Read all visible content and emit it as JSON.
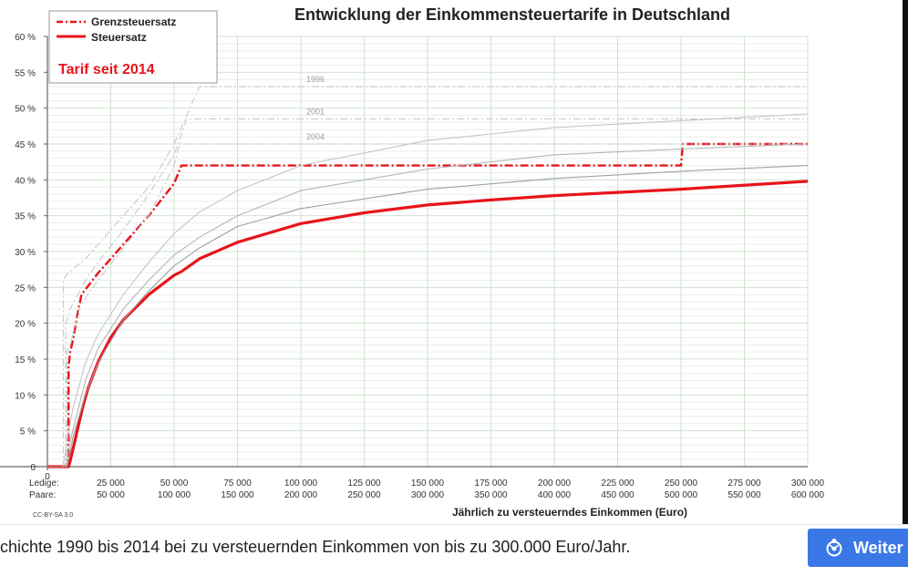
{
  "chart_data": {
    "type": "line",
    "title": "Entwicklung der Einkommensteuertarife in Deutschland",
    "xlabel": "Jährlich zu versteuerndes Einkommen (Euro)",
    "ylabel": "",
    "xlim": [
      0,
      300000
    ],
    "ylim": [
      0,
      60
    ],
    "x_ticks_ledige": [
      "25 000",
      "50 000",
      "75 000",
      "100 000",
      "125 000",
      "150 000",
      "175 000",
      "200 000",
      "225 000",
      "250 000",
      "275 000",
      "300 000"
    ],
    "x_ticks_paare": [
      "50 000",
      "100 000",
      "150 000",
      "200 000",
      "250 000",
      "300 000",
      "350 000",
      "400 000",
      "450 000",
      "500 000",
      "550 000",
      "600 000"
    ],
    "x_tick_values": [
      25000,
      50000,
      75000,
      100000,
      125000,
      150000,
      175000,
      200000,
      225000,
      250000,
      275000,
      300000
    ],
    "row_label_ledige": "Ledige:",
    "row_label_paare": "Paare:",
    "x_zero_label": "0",
    "y_ticks": [
      "0",
      "5 %",
      "10 %",
      "15 %",
      "20 %",
      "25 %",
      "30 %",
      "35 %",
      "40 %",
      "45 %",
      "50 %",
      "55 %",
      "60 %"
    ],
    "y_tick_values": [
      0,
      5,
      10,
      15,
      20,
      25,
      30,
      35,
      40,
      45,
      50,
      55,
      60
    ],
    "grid": true,
    "legend": {
      "position": "top-left",
      "entries": [
        {
          "label": "Grenzsteuersatz",
          "style": "dash-dot",
          "color": "#e8141b"
        },
        {
          "label": "Steuersatz",
          "style": "solid",
          "color": "#e8141b"
        }
      ],
      "note": "Tarif seit 2014"
    },
    "annotations": [
      "1996",
      "2001",
      "2004"
    ],
    "license": "CC-BY-SA 3.0",
    "series": [
      {
        "name": "Steuersatz",
        "role": "avg-2014",
        "color": "#e8141b",
        "x": [
          0,
          8354,
          9000,
          10000,
          12000,
          14000,
          16000,
          20000,
          25000,
          30000,
          40000,
          50000,
          52882,
          60000,
          75000,
          100000,
          125000,
          150000,
          175000,
          200000,
          250000,
          300000
        ],
        "y": [
          0,
          0,
          0.8,
          2.3,
          5.4,
          8.4,
          10.9,
          14.6,
          18.0,
          20.5,
          24.0,
          26.7,
          27.2,
          29.0,
          31.3,
          33.9,
          35.4,
          36.5,
          37.2,
          37.8,
          38.7,
          39.8
        ]
      },
      {
        "name": "Grenzsteuersatz",
        "role": "marginal-2014",
        "color": "#e8141b",
        "x": [
          0,
          8354,
          8354,
          9000,
          10000,
          11000,
          12000,
          13469,
          20000,
          30000,
          40000,
          50000,
          52882,
          60000,
          100000,
          150000,
          200000,
          250000,
          250730,
          260000,
          300000
        ],
        "y": [
          0,
          0,
          14,
          16,
          17.5,
          19.5,
          21.5,
          24,
          27,
          31,
          35,
          39.5,
          42,
          42,
          42,
          42,
          42,
          42,
          45,
          45,
          45
        ]
      },
      {
        "role": "marginal-1996",
        "color": "#c8c8c8",
        "x": [
          0,
          6300,
          6300,
          8000,
          10000,
          15000,
          20000,
          30000,
          40000,
          50000,
          60000,
          300000
        ],
        "y": [
          0,
          0,
          26,
          27,
          27.5,
          29,
          31,
          35,
          39,
          45,
          53,
          53
        ]
      },
      {
        "role": "marginal-2001",
        "color": "#c8c8c8",
        "x": [
          0,
          7200,
          7200,
          9000,
          12000,
          15000,
          20000,
          30000,
          40000,
          50000,
          55000,
          300000
        ],
        "y": [
          0,
          0,
          19.9,
          22,
          24,
          26,
          28.5,
          33,
          38,
          43.5,
          48.5,
          48.5
        ]
      },
      {
        "role": "marginal-2004",
        "color": "#c8c8c8",
        "x": [
          0,
          7700,
          7700,
          9000,
          12000,
          13000,
          20000,
          30000,
          40000,
          50000,
          52200,
          300000
        ],
        "y": [
          0,
          0,
          16,
          17,
          21,
          22.5,
          26,
          30.5,
          35,
          42,
          45,
          45
        ]
      },
      {
        "role": "avg-1996",
        "color": "#c4c4c4",
        "x": [
          0,
          6300,
          8000,
          10000,
          15000,
          20000,
          30000,
          40000,
          50000,
          60000,
          75000,
          100000,
          150000,
          200000,
          300000
        ],
        "y": [
          0,
          0,
          4,
          8,
          14.5,
          18.5,
          24,
          28.5,
          32.5,
          35.5,
          38.5,
          42,
          45.5,
          47.3,
          49.2
        ]
      },
      {
        "role": "avg-2001",
        "color": "#b4b4b4",
        "x": [
          0,
          7200,
          9000,
          10000,
          15000,
          20000,
          30000,
          40000,
          50000,
          60000,
          75000,
          100000,
          150000,
          200000,
          250000,
          300000
        ],
        "y": [
          0,
          0,
          3.5,
          5,
          12,
          16.5,
          22,
          26,
          29.5,
          32,
          35,
          38.5,
          41.5,
          43.5,
          44.3,
          45
        ]
      },
      {
        "role": "avg-2004",
        "color": "#a0a0a0",
        "x": [
          0,
          7700,
          9000,
          10000,
          15000,
          20000,
          30000,
          40000,
          50000,
          60000,
          75000,
          100000,
          150000,
          200000,
          250000,
          300000
        ],
        "y": [
          0,
          0,
          2,
          4,
          10,
          14.5,
          20.5,
          24.5,
          28,
          30.5,
          33.5,
          36,
          38.7,
          40.2,
          41.2,
          42
        ]
      }
    ]
  },
  "caption": {
    "text": "chichte 1990 bis 2014 bei zu versteuernden Einkommen von bis zu 300.000 Euro/Jahr.",
    "button_label": "Weiter"
  }
}
